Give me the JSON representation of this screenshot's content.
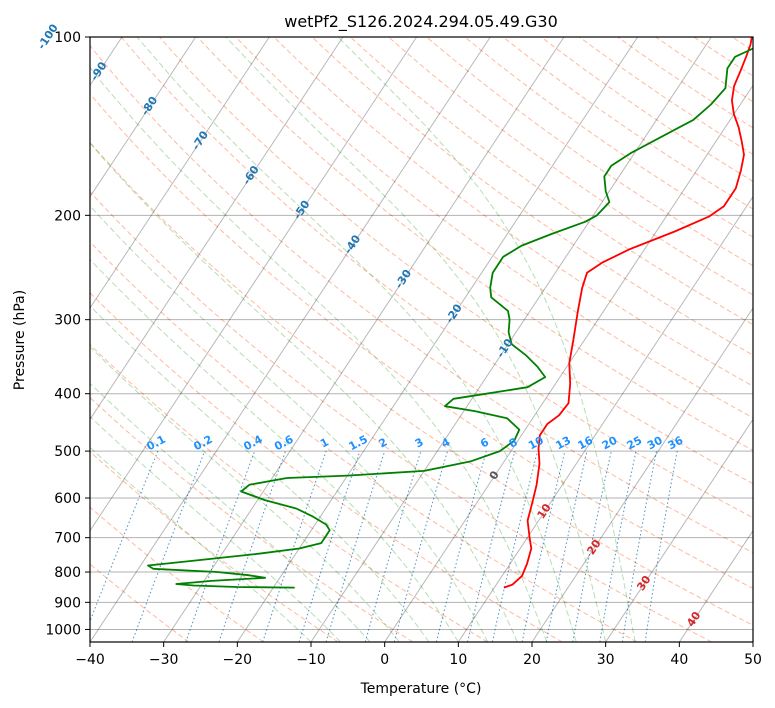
{
  "chart_data": {
    "type": "line",
    "title": "wetPf2_S126.2024.294.05.49.G30",
    "xlabel": "Temperature (°C)",
    "ylabel": "Pressure (hPa)",
    "xlim": [
      -40,
      50
    ],
    "ylim": [
      1050,
      100
    ],
    "y_scale": "log",
    "x_ticks": [
      -40,
      -30,
      -20,
      -10,
      0,
      10,
      20,
      30,
      40,
      50
    ],
    "x_tick_labels": [
      "−40",
      "−30",
      "−20",
      "−10",
      "0",
      "10",
      "20",
      "30",
      "40",
      "50"
    ],
    "y_ticks": [
      1000,
      900,
      800,
      700,
      600,
      500,
      400,
      300,
      200,
      100
    ],
    "y_tick_labels": [
      "1000",
      "900",
      "800",
      "700",
      "600",
      "500",
      "400",
      "300",
      "200",
      "100"
    ],
    "grid": true,
    "skew_isotherm_labels": [
      "-100",
      "-90",
      "-80",
      "-70",
      "-60",
      "-50",
      "-40",
      "-30",
      "-20",
      "-10",
      "0",
      "10",
      "20",
      "30",
      "40"
    ],
    "mixing_ratio_labels": [
      "0.1",
      "0.2",
      "0.4",
      "0.6",
      "1",
      "1.5",
      "2",
      "3",
      "4",
      "6",
      "8",
      "10",
      "13",
      "16",
      "20",
      "25",
      "30",
      "36"
    ],
    "series": [
      {
        "color": "#ff0000",
        "points": [
          [
            11.3,
            850
          ],
          [
            12.2,
            840
          ],
          [
            12.7,
            812
          ],
          [
            12.3,
            775
          ],
          [
            11.5,
            730
          ],
          [
            10.3,
            700
          ],
          [
            8.5,
            655
          ],
          [
            7.5,
            610
          ],
          [
            6.5,
            570
          ],
          [
            5.0,
            525
          ],
          [
            3.5,
            495
          ],
          [
            2.5,
            470
          ],
          [
            2.5,
            450
          ],
          [
            3.3,
            435
          ],
          [
            3.5,
            415
          ],
          [
            2.0,
            385
          ],
          [
            0.0,
            355
          ],
          [
            -1.5,
            325
          ],
          [
            -3.5,
            290
          ],
          [
            -5.0,
            265
          ],
          [
            -5.7,
            250
          ],
          [
            -4.5,
            240
          ],
          [
            -2.0,
            228
          ],
          [
            2.5,
            213
          ],
          [
            5.8,
            201
          ],
          [
            6.9,
            193
          ],
          [
            6.9,
            180
          ],
          [
            6.0,
            168
          ],
          [
            5.0,
            158
          ],
          [
            3.5,
            150
          ],
          [
            1.8,
            142
          ],
          [
            0.0,
            135
          ],
          [
            -1.5,
            128
          ],
          [
            -2.5,
            121
          ],
          [
            -3.0,
            114
          ],
          [
            -3.5,
            108
          ],
          [
            -4.0,
            103
          ],
          [
            -4.5,
            100
          ]
        ]
      },
      {
        "color": "#008000",
        "points": [
          [
            -17.1,
            850
          ],
          [
            -25.0,
            848
          ],
          [
            -31.0,
            843
          ],
          [
            -33.5,
            838
          ],
          [
            -29.0,
            828
          ],
          [
            -22.0,
            818
          ],
          [
            -24.5,
            810
          ],
          [
            -29.0,
            800
          ],
          [
            -38.0,
            790
          ],
          [
            -39.0,
            780
          ],
          [
            -33.0,
            765
          ],
          [
            -25.0,
            745
          ],
          [
            -20.0,
            730
          ],
          [
            -17.5,
            715
          ],
          [
            -17.5,
            700
          ],
          [
            -17.5,
            680
          ],
          [
            -18.5,
            665
          ],
          [
            -21.0,
            645
          ],
          [
            -24.0,
            625
          ],
          [
            -29.0,
            605
          ],
          [
            -33.0,
            585
          ],
          [
            -32.5,
            570
          ],
          [
            -28.0,
            555
          ],
          [
            -20.0,
            550
          ],
          [
            -10.0,
            540
          ],
          [
            -4.5,
            520
          ],
          [
            -1.5,
            500
          ],
          [
            -0.5,
            480
          ],
          [
            -0.8,
            460
          ],
          [
            -3.5,
            440
          ],
          [
            -8.5,
            428
          ],
          [
            -13.0,
            420
          ],
          [
            -12.5,
            408
          ],
          [
            -8.5,
            400
          ],
          [
            -3.5,
            390
          ],
          [
            -2.0,
            375
          ],
          [
            -4.0,
            360
          ],
          [
            -6.5,
            345
          ],
          [
            -9.5,
            330
          ],
          [
            -11.0,
            315
          ],
          [
            -12.0,
            300
          ],
          [
            -13.0,
            290
          ],
          [
            -16.5,
            275
          ],
          [
            -17.5,
            265
          ],
          [
            -18.5,
            250
          ],
          [
            -18.5,
            235
          ],
          [
            -17.0,
            225
          ],
          [
            -14.0,
            215
          ],
          [
            -10.5,
            205
          ],
          [
            -9.5,
            200
          ],
          [
            -9.0,
            190
          ],
          [
            -10.5,
            182
          ],
          [
            -12.0,
            172
          ],
          [
            -12.0,
            165
          ],
          [
            -10.5,
            157
          ],
          [
            -8.0,
            148
          ],
          [
            -5.0,
            138
          ],
          [
            -4.0,
            130
          ],
          [
            -3.5,
            122
          ],
          [
            -5.0,
            113
          ],
          [
            -5.0,
            108
          ],
          [
            -3.0,
            104
          ],
          [
            -0.5,
            100
          ]
        ]
      }
    ]
  }
}
